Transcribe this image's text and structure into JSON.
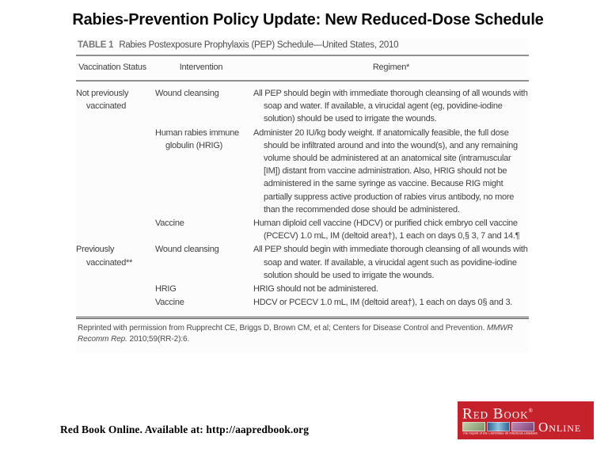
{
  "slide": {
    "title": "Rabies-Prevention Policy Update: New Reduced-Dose Schedule",
    "footer_credit": "Red Book Online. Available at: http://aapredbook.org"
  },
  "table": {
    "label": "TABLE 1",
    "caption": "Rabies Postexposure Prophylaxis (PEP) Schedule—United States, 2010",
    "headers": {
      "status": "Vaccination Status",
      "intervention": "Intervention",
      "regimen": "Regimen*"
    },
    "rows": [
      {
        "status": "Not previously vaccinated",
        "intervention": "Wound cleansing",
        "regimen": "All PEP should begin with immediate thorough cleansing of all wounds with soap and water. If available, a virucidal agent (eg, povidine-iodine solution) should be used to irrigate the wounds."
      },
      {
        "status": "",
        "intervention": "Human rabies immune globulin (HRIG)",
        "regimen": "Administer 20 IU/kg body weight. If anatomically feasible, the full dose should be infiltrated around and into the wound(s), and any remaining volume should be administered at an anatomical site (intramuscular [IM]) distant from vaccine administration. Also, HRIG should not be administered in the same syringe as vaccine. Because RIG might partially suppress active production of rabies virus antibody, no more than the recommended dose should be administered."
      },
      {
        "status": "",
        "intervention": "Vaccine",
        "regimen": "Human diploid cell vaccine (HDCV) or purified chick embryo cell vaccine (PCECV) 1.0 mL, IM (deltoid area†), 1 each on days 0,§ 3, 7 and 14.¶"
      },
      {
        "status": "Previously vaccinated**",
        "intervention": "Wound cleansing",
        "regimen": "All PEP should begin with immediate thorough cleansing of all wounds with soap and water. If available, a virucidal agent such as povidine-iodine solution should be used to irrigate the wounds."
      },
      {
        "status": "",
        "intervention": "HRIG",
        "regimen": "HRIG should not be administered."
      },
      {
        "status": "",
        "intervention": "Vaccine",
        "regimen": "HDCV or PCECV 1.0 mL, IM (deltoid area†), 1 each on days 0§ and 3."
      }
    ],
    "source": {
      "prefix": "Reprinted with permission from Rupprecht CE, Briggs D, Brown CM, et al; Centers for Disease Control and Prevention. ",
      "italic": "MMWR Recomm Rep.",
      "suffix": " 2010;59(RR-2):6."
    }
  },
  "logo": {
    "wordmark_top": "Red Book",
    "registered_mark": "®",
    "wordmark_bottom": "Online",
    "tagline": "The Report of the Committee on Infectious Diseases",
    "brand_red": "#c5222b",
    "thumb_colors": [
      "#8fa878",
      "#3c6e96",
      "#96538c"
    ]
  }
}
